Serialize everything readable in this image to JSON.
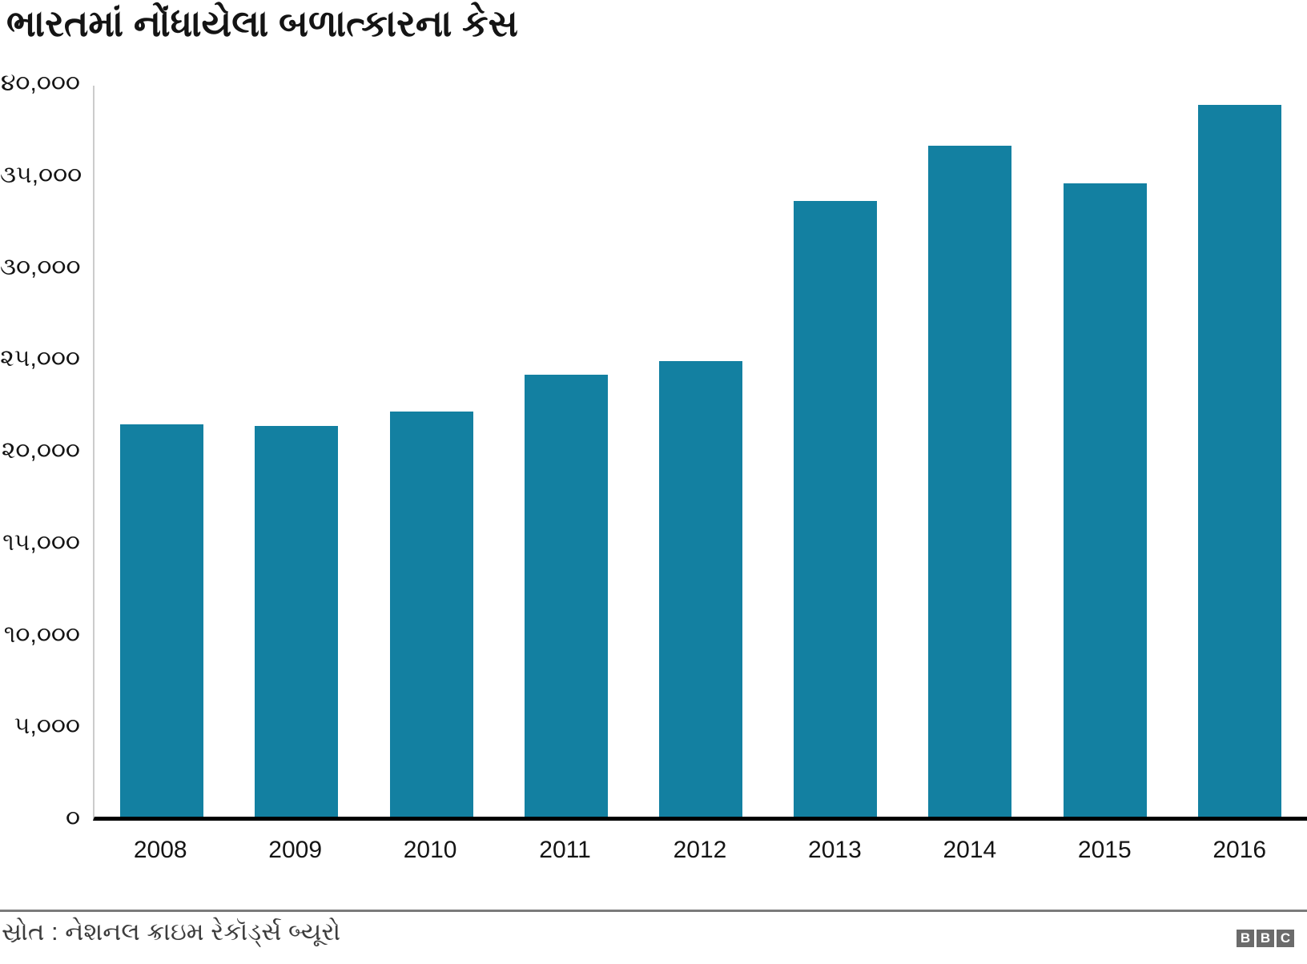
{
  "title": "ભારતમાં નોંધાયેલા બળાત્કારના કેસ",
  "source": {
    "label": "સ્રોત : નેશનલ ક્રાઇમ રેકૉર્ડ્સ બ્યૂરો"
  },
  "logo": {
    "letters": [
      "B",
      "B",
      "C"
    ]
  },
  "colors": {
    "bg": "#ffffff",
    "bar": "#1380A1",
    "text": "#141414",
    "axis_line": "#cccccc",
    "baseline": "#000000",
    "divider": "#7b7b7b",
    "source_text": "#3d3d3d",
    "logo_bg": "#6b6b6b"
  },
  "chart_data": {
    "type": "bar",
    "title": "ભારતમાં નોંધાયેલા બળાત્કારના કેસ",
    "categories": [
      "2008",
      "2009",
      "2010",
      "2011",
      "2012",
      "2013",
      "2014",
      "2015",
      "2016"
    ],
    "values": [
      21467,
      21397,
      22172,
      24206,
      24923,
      33707,
      36735,
      34651,
      38947
    ],
    "xlabel": "",
    "ylabel": "",
    "ylim": [
      0,
      40000
    ],
    "yticks": [
      {
        "value": 40000,
        "label": "૪૦,૦૦૦"
      },
      {
        "value": 35000,
        "label": "૩૫,૦૦૦"
      },
      {
        "value": 30000,
        "label": "૩૦,૦૦૦"
      },
      {
        "value": 25000,
        "label": "૨૫,૦૦૦"
      },
      {
        "value": 20000,
        "label": "૨૦,૦૦૦"
      },
      {
        "value": 15000,
        "label": "૧૫,૦૦૦"
      },
      {
        "value": 10000,
        "label": "૧૦,૦૦૦"
      },
      {
        "value": 5000,
        "label": "૫,૦૦૦"
      },
      {
        "value": 0,
        "label": "૦"
      }
    ],
    "grid": false,
    "legend": false,
    "bar_color": "#1380A1",
    "source": "સ્રોત : નેશનલ ક્રાઇમ રેકૉર્ડ્સ બ્યૂરો"
  }
}
